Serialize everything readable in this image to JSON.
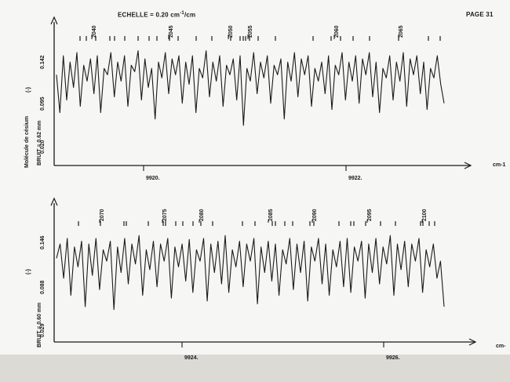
{
  "header": {
    "scale_label": "ECHELLE = 0.20 cm",
    "scale_sup": "-1",
    "scale_unit": "/cm",
    "page_label": "PAGE 31"
  },
  "panels": [
    {
      "ylabel_molecule": "Molécule de césium",
      "ylabel_unit": "(-)",
      "noise_label": "BRUIT = 0.62 mm",
      "y_ticks": [
        "0.142",
        "0.095",
        "0.020"
      ],
      "x_ticks": [
        "9920.",
        "9922."
      ],
      "x_unit": "cm-1",
      "line_numbers": [
        "2040",
        "2045",
        "2050",
        "2055",
        "2060",
        "2065"
      ]
    },
    {
      "ylabel_unit": "(-)",
      "noise_label": "BRUIT = 0.60 mm",
      "y_ticks": [
        "0.146",
        "0.088",
        "0.029"
      ],
      "x_ticks": [
        "9924.",
        "9926."
      ],
      "x_unit": "cm-",
      "line_numbers": [
        "2070",
        "2075",
        "2080",
        "2085",
        "2090",
        "2095",
        "2100"
      ]
    }
  ],
  "chart_data": [
    {
      "type": "line",
      "title": "ECHELLE = 0.20 cm-1/cm",
      "xlabel": "cm-1",
      "ylabel": "Molécule de césium (-)",
      "x_ticks": [
        9920,
        9922
      ],
      "xlim": [
        9919.6,
        9923.05
      ],
      "y_ticks": [
        0.02,
        0.095,
        0.142
      ],
      "ylim": [
        0.0,
        0.17
      ],
      "noise": "0.62 mm",
      "line_numbers": [
        2040,
        2045,
        2050,
        2055,
        2060,
        2065
      ],
      "series": [
        {
          "x": [
            9919.6,
            9919.63,
            9919.66,
            9919.69,
            9919.72,
            9919.75,
            9919.78,
            9919.81,
            9919.84,
            9919.87,
            9919.9,
            9919.93,
            9919.96,
            9919.99,
            9920.02,
            9920.05,
            9920.08,
            9920.11,
            9920.14,
            9920.17,
            9920.2,
            9920.23,
            9920.26,
            9920.29,
            9920.32,
            9920.35,
            9920.38,
            9920.41,
            9920.44,
            9920.47,
            9920.5,
            9920.53,
            9920.56,
            9920.59,
            9920.62,
            9920.65,
            9920.68,
            9920.71,
            9920.74,
            9920.77,
            9920.8,
            9920.83,
            9920.86,
            9920.89,
            9920.92,
            9920.95,
            9920.98,
            9921.01,
            9921.04,
            9921.07,
            9921.1,
            9921.13,
            9921.16,
            9921.19,
            9921.22,
            9921.25,
            9921.28,
            9921.31,
            9921.34,
            9921.37,
            9921.4,
            9921.43,
            9921.46,
            9921.49,
            9921.52,
            9921.55,
            9921.58,
            9921.61,
            9921.64,
            9921.67,
            9921.7,
            9921.73,
            9921.76,
            9921.79,
            9921.82,
            9921.85,
            9921.88,
            9921.91,
            9921.94,
            9921.97,
            9922.0,
            9922.03,
            9922.06,
            9922.09,
            9922.12,
            9922.15,
            9922.18,
            9922.21,
            9922.24,
            9922.27,
            9922.3,
            9922.33,
            9922.36,
            9922.39,
            9922.42,
            9922.45,
            9922.48,
            9922.51,
            9922.54,
            9922.57,
            9922.6,
            9922.63,
            9922.66,
            9922.69,
            9922.72,
            9922.75,
            9922.78,
            9922.81,
            9922.84,
            9922.87,
            9922.9,
            9922.93,
            9922.96,
            9922.99,
            9923.02
          ],
          "values": [
            0.12,
            0.06,
            0.15,
            0.08,
            0.14,
            0.1,
            0.155,
            0.07,
            0.135,
            0.11,
            0.145,
            0.09,
            0.15,
            0.06,
            0.13,
            0.12,
            0.155,
            0.085,
            0.14,
            0.11,
            0.15,
            0.07,
            0.135,
            0.125,
            0.158,
            0.08,
            0.145,
            0.1,
            0.13,
            0.05,
            0.14,
            0.115,
            0.155,
            0.09,
            0.145,
            0.12,
            0.15,
            0.075,
            0.14,
            0.105,
            0.15,
            0.06,
            0.13,
            0.115,
            0.158,
            0.085,
            0.14,
            0.11,
            0.15,
            0.07,
            0.135,
            0.12,
            0.145,
            0.08,
            0.15,
            0.04,
            0.13,
            0.11,
            0.155,
            0.09,
            0.14,
            0.115,
            0.15,
            0.075,
            0.135,
            0.12,
            0.145,
            0.05,
            0.14,
            0.11,
            0.155,
            0.085,
            0.145,
            0.12,
            0.15,
            0.07,
            0.13,
            0.11,
            0.14,
            0.09,
            0.15,
            0.065,
            0.135,
            0.12,
            0.155,
            0.08,
            0.14,
            0.11,
            0.15,
            0.075,
            0.145,
            0.12,
            0.155,
            0.085,
            0.14,
            0.06,
            0.13,
            0.115,
            0.15,
            0.08,
            0.14,
            0.11,
            0.155,
            0.07,
            0.145,
            0.12,
            0.15,
            0.09,
            0.14,
            0.065,
            0.13,
            0.115,
            0.15,
            0.105,
            0.075
          ]
        }
      ]
    },
    {
      "type": "line",
      "xlabel": "cm-",
      "ylabel": "(-)",
      "x_ticks": [
        9924,
        9926
      ],
      "xlim": [
        9923.35,
        9926.6
      ],
      "y_ticks": [
        0.029,
        0.088,
        0.146
      ],
      "ylim": [
        0.0,
        0.175
      ],
      "noise": "0.60 mm",
      "line_numbers": [
        2070,
        2075,
        2080,
        2085,
        2090,
        2095,
        2100
      ],
      "series": [
        {
          "x": [
            9923.35,
            9923.38,
            9923.41,
            9923.44,
            9923.47,
            9923.5,
            9923.53,
            9923.56,
            9923.59,
            9923.62,
            9923.65,
            9923.68,
            9923.71,
            9923.74,
            9923.77,
            9923.8,
            9923.83,
            9923.86,
            9923.89,
            9923.92,
            9923.95,
            9923.98,
            9924.01,
            9924.04,
            9924.07,
            9924.1,
            9924.13,
            9924.16,
            9924.19,
            9924.22,
            9924.25,
            9924.28,
            9924.31,
            9924.34,
            9924.37,
            9924.4,
            9924.43,
            9924.46,
            9924.49,
            9924.52,
            9924.55,
            9924.58,
            9924.61,
            9924.64,
            9924.67,
            9924.7,
            9924.73,
            9924.76,
            9924.79,
            9924.82,
            9924.85,
            9924.88,
            9924.91,
            9924.94,
            9924.97,
            9925.0,
            9925.03,
            9925.06,
            9925.09,
            9925.12,
            9925.15,
            9925.18,
            9925.21,
            9925.24,
            9925.27,
            9925.3,
            9925.33,
            9925.36,
            9925.39,
            9925.42,
            9925.45,
            9925.48,
            9925.51,
            9925.54,
            9925.57,
            9925.6,
            9925.63,
            9925.66,
            9925.69,
            9925.72,
            9925.75,
            9925.78,
            9925.81,
            9925.84,
            9925.87,
            9925.9,
            9925.93,
            9925.96,
            9925.99,
            9926.02,
            9926.05,
            9926.08,
            9926.11,
            9926.14,
            9926.17,
            9926.2,
            9926.23,
            9926.26,
            9926.29,
            9926.32,
            9926.35,
            9926.38,
            9926.41,
            9926.44,
            9926.47,
            9926.5,
            9926.53,
            9926.56,
            9926.59
          ],
          "values": [
            0.125,
            0.15,
            0.09,
            0.16,
            0.06,
            0.145,
            0.11,
            0.155,
            0.04,
            0.15,
            0.095,
            0.16,
            0.07,
            0.14,
            0.12,
            0.155,
            0.035,
            0.145,
            0.1,
            0.16,
            0.08,
            0.15,
            0.115,
            0.165,
            0.06,
            0.14,
            0.105,
            0.155,
            0.075,
            0.15,
            0.12,
            0.16,
            0.055,
            0.145,
            0.11,
            0.15,
            0.085,
            0.158,
            0.065,
            0.14,
            0.12,
            0.16,
            0.05,
            0.15,
            0.1,
            0.155,
            0.08,
            0.165,
            0.065,
            0.14,
            0.11,
            0.155,
            0.075,
            0.15,
            0.12,
            0.16,
            0.045,
            0.145,
            0.1,
            0.155,
            0.085,
            0.15,
            0.06,
            0.14,
            0.115,
            0.16,
            0.07,
            0.15,
            0.1,
            0.155,
            0.05,
            0.145,
            0.12,
            0.16,
            0.08,
            0.15,
            0.06,
            0.14,
            0.11,
            0.155,
            0.075,
            0.16,
            0.065,
            0.145,
            0.12,
            0.155,
            0.055,
            0.15,
            0.1,
            0.16,
            0.08,
            0.145,
            0.115,
            0.165,
            0.06,
            0.15,
            0.105,
            0.155,
            0.075,
            0.15,
            0.12,
            0.16,
            0.065,
            0.14,
            0.11,
            0.15,
            0.09,
            0.12,
            0.04
          ]
        }
      ]
    }
  ]
}
